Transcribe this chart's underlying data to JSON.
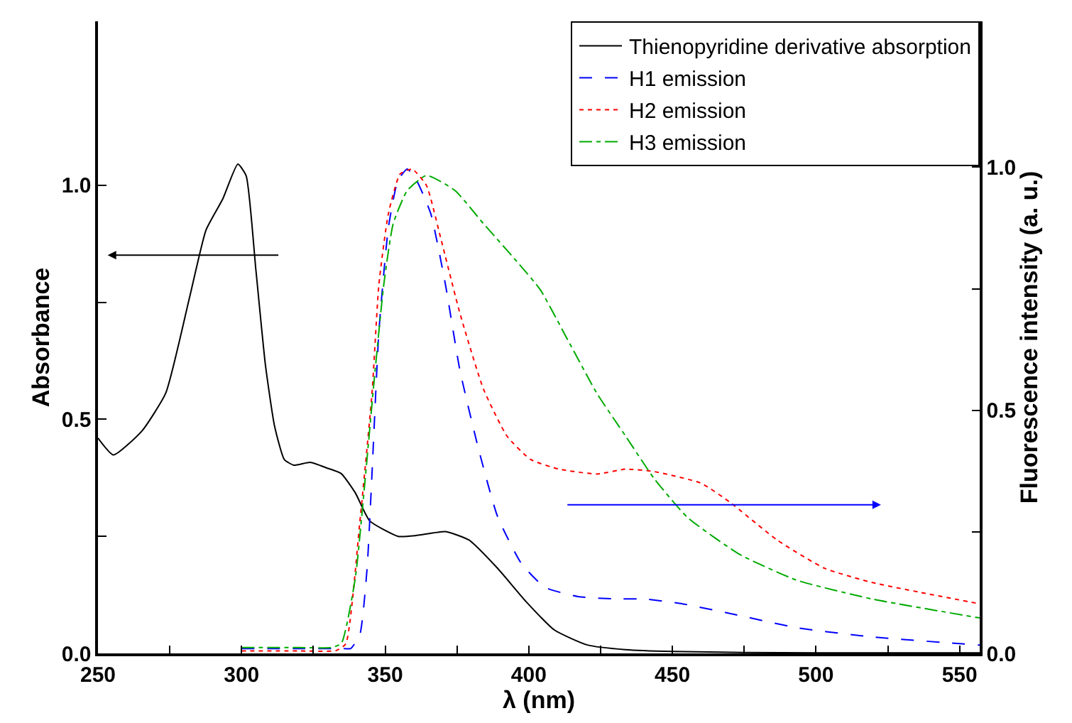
{
  "chart_data": {
    "type": "line",
    "xlabel": "λ (nm)",
    "ylabel": "Absorbance",
    "y2label": "Fluorescence intensity (a. u.)",
    "xlim": [
      250,
      557
    ],
    "xticks": [
      250,
      {
        "value": 275,
        "label": null
      },
      300,
      {
        "value": 325,
        "label": null
      },
      350,
      {
        "value": 375,
        "label": null
      },
      400,
      {
        "value": 425,
        "label": null
      },
      450,
      {
        "value": 475,
        "label": null
      },
      500,
      {
        "value": 525,
        "label": null
      },
      550
    ],
    "ylim": [
      0,
      1.35
    ],
    "yticks": [
      {
        "value": 0,
        "label": "0.0"
      },
      {
        "value": 0.25,
        "label": null
      },
      0.5,
      {
        "value": 0.75,
        "label": null
      },
      {
        "value": 1,
        "label": "1.0"
      }
    ],
    "y2lim": [
      0,
      1.3
    ],
    "y2ticks": [
      {
        "value": 0,
        "label": "0.0"
      },
      {
        "value": 0.25,
        "label": null
      },
      0.5,
      {
        "value": 0.75,
        "label": null
      },
      {
        "value": 1,
        "label": "1.0"
      }
    ],
    "legend": "top right",
    "marker": "none",
    "series": [
      {
        "name": "Thienopyridine derivative absorption",
        "color": "#000000",
        "line_style": "solid",
        "x": [
          250,
          255.4,
          265.3,
          273.6,
          281.8,
          287.6,
          293.4,
          298.7,
          301.6,
          305,
          308.3,
          311.5,
          314.9,
          318.2,
          323.9,
          329.7,
          334.7,
          339.6,
          344.6,
          354.5,
          361.1,
          371,
          379.2,
          389.1,
          399,
          408.9,
          420.4,
          433.7,
          450,
          475,
          500,
          557
        ],
        "values": [
          0.46,
          0.424,
          0.475,
          0.556,
          0.758,
          0.904,
          0.97,
          1.045,
          1.02,
          0.818,
          0.616,
          0.485,
          0.414,
          0.402,
          0.408,
          0.396,
          0.384,
          0.343,
          0.283,
          0.25,
          0.252,
          0.26,
          0.242,
          0.182,
          0.111,
          0.05,
          0.018,
          0.008,
          0.004,
          0.002,
          0.001,
          0.001
        ]
      },
      {
        "name": "H1 emission",
        "color": "#0000ff",
        "line_style": "dashed",
        "axis": "y2",
        "x": [
          300,
          320,
          335,
          338,
          341.2,
          343.7,
          345.4,
          347.8,
          351.1,
          354.4,
          357.7,
          361,
          365.9,
          371,
          376,
          382.6,
          389.1,
          397.4,
          405.6,
          417.1,
          430.2,
          440.1,
          453.5,
          473.3,
          493.1,
          519.4,
          557
        ],
        "values": [
          0.01,
          0.01,
          0.01,
          0.01,
          0.039,
          0.175,
          0.369,
          0.661,
          0.875,
          0.972,
          0.996,
          0.972,
          0.904,
          0.758,
          0.583,
          0.418,
          0.282,
          0.185,
          0.136,
          0.117,
          0.112,
          0.112,
          0.102,
          0.078,
          0.053,
          0.034,
          0.017
        ]
      },
      {
        "name": "H2 emission",
        "color": "#ff0000",
        "line_style": "dotted",
        "axis": "y2",
        "x": [
          300,
          320,
          333,
          336.3,
          341.2,
          345.4,
          347.8,
          351.1,
          355.2,
          359.4,
          364.4,
          369.3,
          376,
          384.2,
          392.4,
          400.6,
          410.5,
          423.8,
          433.7,
          443.6,
          460,
          470,
          486.5,
          503,
          519.4,
          535.9,
          557
        ],
        "values": [
          0.005,
          0.005,
          0.006,
          0.02,
          0.272,
          0.534,
          0.758,
          0.904,
          0.986,
          0.996,
          0.962,
          0.855,
          0.7,
          0.544,
          0.447,
          0.399,
          0.379,
          0.369,
          0.379,
          0.374,
          0.35,
          0.311,
          0.233,
          0.175,
          0.146,
          0.126,
          0.102
        ]
      },
      {
        "name": "H3 emission",
        "color": "#00aa00",
        "line_style": "dashdot",
        "axis": "y2",
        "x": [
          300,
          320,
          331,
          334.7,
          339.6,
          342.9,
          346.2,
          349.5,
          352.8,
          357.7,
          364.4,
          374.3,
          384.2,
          395.7,
          404,
          413.9,
          423.8,
          433.7,
          443.6,
          455.2,
          473.3,
          493.1,
          519.4,
          557
        ],
        "values": [
          0.012,
          0.012,
          0.012,
          0.02,
          0.155,
          0.35,
          0.564,
          0.758,
          0.884,
          0.952,
          0.983,
          0.952,
          0.884,
          0.807,
          0.748,
          0.641,
          0.534,
          0.447,
          0.36,
          0.28,
          0.204,
          0.151,
          0.112,
          0.073
        ]
      }
    ]
  }
}
